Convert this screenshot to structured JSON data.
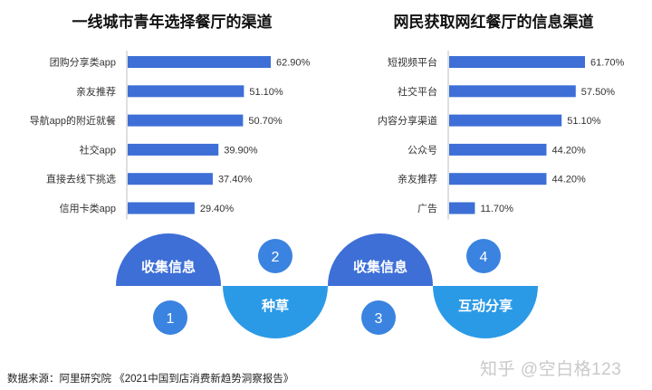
{
  "chart_data": [
    {
      "type": "bar",
      "orientation": "horizontal",
      "title": "一线城市青年选择餐厅的渠道",
      "categories": [
        "团购分享类app",
        "亲友推荐",
        "导航app的附近就餐",
        "社交app",
        "直接去线下挑选",
        "信用卡类app"
      ],
      "values": [
        62.9,
        51.1,
        50.7,
        39.9,
        37.4,
        29.4
      ],
      "value_labels": [
        "62.90%",
        "51.10%",
        "50.70%",
        "39.90%",
        "37.40%",
        "29.40%"
      ],
      "unit": "%",
      "color": "#3d6fd6",
      "grid": false
    },
    {
      "type": "bar",
      "orientation": "horizontal",
      "title": "网民获取网红餐厅的信息渠道",
      "categories": [
        "短视频平台",
        "社交平台",
        "内容分享渠道",
        "公众号",
        "亲友推荐",
        "广告"
      ],
      "values": [
        61.7,
        57.5,
        51.1,
        44.2,
        44.2,
        11.7
      ],
      "value_labels": [
        "61.70%",
        "57.50%",
        "51.10%",
        "44.20%",
        "44.20%",
        "11.70%"
      ],
      "unit": "%",
      "color": "#3d6fd6",
      "grid": false
    }
  ],
  "flow": {
    "steps": [
      {
        "label": "收集信息",
        "number": "1"
      },
      {
        "label": "种草",
        "number": "2"
      },
      {
        "label": "收集信息",
        "number": "3"
      },
      {
        "label": "互动分享",
        "number": "4"
      }
    ],
    "colors": {
      "dark": "#3d6fd6",
      "light": "#2b9ae6",
      "mid": "#3a83e0"
    }
  },
  "source": "数据来源：阿里研究院 《2021中国到店消费新趋势洞察报告》",
  "watermark": "知乎 @空白格123"
}
